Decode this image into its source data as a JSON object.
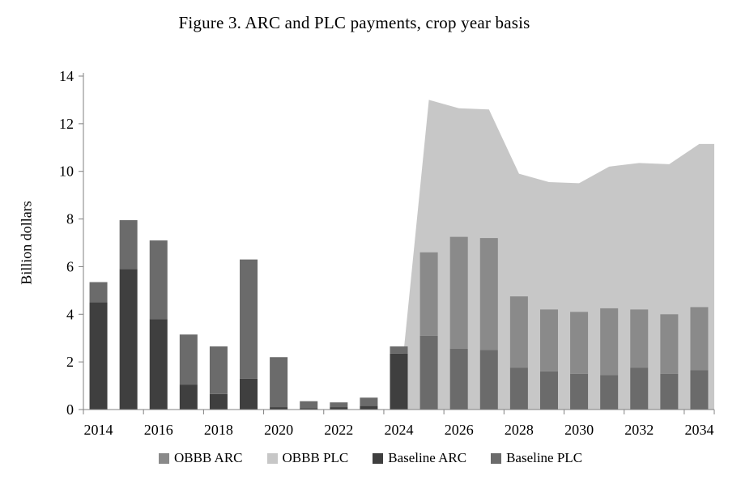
{
  "chart_data": {
    "type": "bar",
    "subtype": "stacked-bars-with-area-overlay",
    "title": "Figure 3. ARC and PLC payments, crop year basis",
    "ylabel": "Billion dollars",
    "ylim": [
      0,
      14
    ],
    "yticks": [
      0,
      2,
      4,
      6,
      8,
      10,
      12,
      14
    ],
    "grid": "off",
    "legend_position": "bottom",
    "x": [
      2014,
      2015,
      2016,
      2017,
      2018,
      2019,
      2020,
      2021,
      2022,
      2023,
      2024,
      2025,
      2026,
      2027,
      2028,
      2029,
      2030,
      2031,
      2032,
      2033,
      2034
    ],
    "x_label_interval": 2,
    "bar_series": [
      {
        "key": "baseline-arc",
        "name": "Baseline ARC",
        "color": "#3f3f3f",
        "values": [
          4.5,
          5.9,
          3.8,
          1.05,
          0.65,
          1.3,
          0.1,
          0.05,
          0.1,
          0.15,
          2.35,
          0,
          0,
          0,
          0,
          0,
          0,
          0,
          0,
          0,
          0
        ]
      },
      {
        "key": "baseline-plc",
        "name": "Baseline PLC",
        "color": "#6b6b6b",
        "values": [
          0.85,
          2.05,
          3.3,
          2.1,
          2.0,
          5.0,
          2.1,
          0.3,
          0.2,
          0.35,
          0.3,
          3.1,
          2.55,
          2.5,
          1.75,
          1.6,
          1.5,
          1.45,
          1.75,
          1.5,
          1.65
        ]
      },
      {
        "key": "obbb-arc",
        "name": "OBBB ARC",
        "color": "#8a8a8a",
        "values": [
          0,
          0,
          0,
          0,
          0,
          0,
          0,
          0,
          0,
          0,
          0,
          3.5,
          4.7,
          4.7,
          3.0,
          2.6,
          2.6,
          2.8,
          2.45,
          2.5,
          2.65
        ]
      }
    ],
    "area_series": {
      "key": "obbb-plc",
      "name": "OBBB PLC",
      "color": "#c7c7c7",
      "values": [
        null,
        null,
        null,
        null,
        null,
        null,
        null,
        null,
        null,
        null,
        0.4,
        13.0,
        12.65,
        12.6,
        9.9,
        9.55,
        9.5,
        10.2,
        10.35,
        10.3,
        11.15
      ]
    },
    "legend": [
      {
        "label": "OBBB ARC",
        "color": "#8a8a8a"
      },
      {
        "label": "OBBB PLC",
        "color": "#c7c7c7"
      },
      {
        "label": "Baseline ARC",
        "color": "#3f3f3f"
      },
      {
        "label": "Baseline PLC",
        "color": "#6b6b6b"
      }
    ],
    "axis_color": "#808080",
    "text_color": "#000000"
  }
}
